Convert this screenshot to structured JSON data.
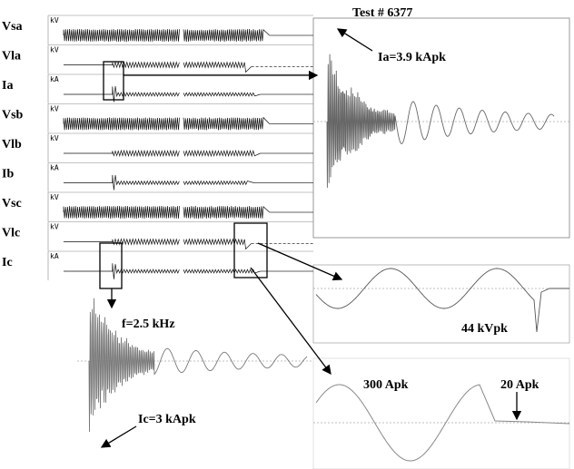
{
  "chart_data": [
    {
      "type": "line",
      "description_role": "multi-channel recorder traces",
      "channels": [
        {
          "name": "Vsa",
          "unit": "kV"
        },
        {
          "name": "Vla",
          "unit": "kV"
        },
        {
          "name": "Ia",
          "unit": "kA"
        },
        {
          "name": "Vsb",
          "unit": "kV"
        },
        {
          "name": "Vlb",
          "unit": "kV"
        },
        {
          "name": "Ib",
          "unit": "kA"
        },
        {
          "name": "Vsc",
          "unit": "kV"
        },
        {
          "name": "Vlc",
          "unit": "kV"
        },
        {
          "name": "Ic",
          "unit": "kA"
        }
      ]
    },
    {
      "type": "line",
      "title": "Test # 6377",
      "annotations": [
        "Ia=3.9 kApk"
      ]
    },
    {
      "type": "line",
      "annotations": [
        "f=2.5 kHz",
        "Ic=3 kApk"
      ]
    },
    {
      "type": "line",
      "annotations": [
        "44 kVpk"
      ]
    },
    {
      "type": "line",
      "annotations": [
        "300 Apk",
        "20 Apk"
      ]
    }
  ]
}
